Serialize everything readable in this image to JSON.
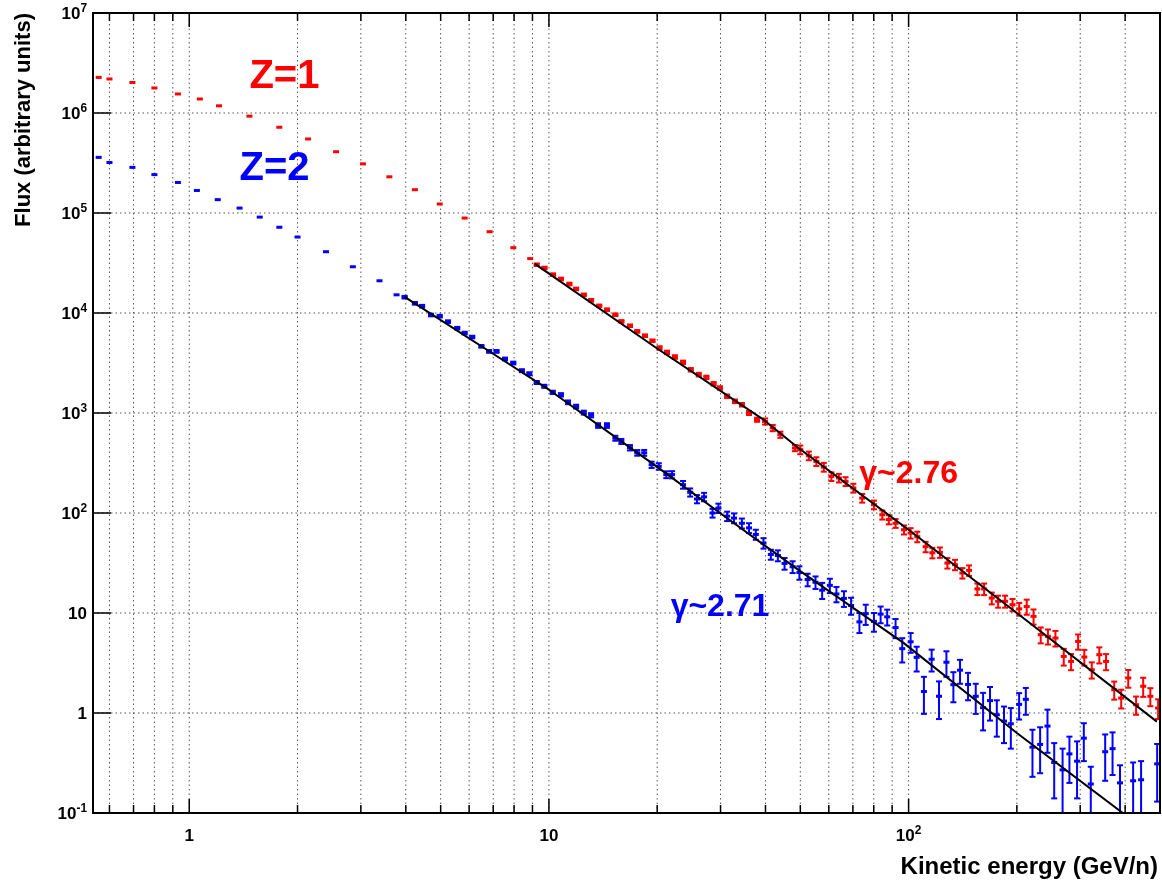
{
  "chart_data": {
    "type": "scatter",
    "xlabel": "Kinetic energy (GeV/n)",
    "ylabel": "Flux (arbitrary units)",
    "log": "xy",
    "grid": true,
    "marker": "square",
    "xlim": [
      0.54,
      500
    ],
    "ylim": [
      0.1,
      10000000
    ],
    "xticks": [
      {
        "value": 0.6,
        "label": null
      },
      {
        "value": 0.7,
        "label": null
      },
      {
        "value": 0.8,
        "label": null
      },
      {
        "value": 0.9,
        "label": null
      },
      1,
      {
        "value": 2,
        "label": null
      },
      {
        "value": 3,
        "label": null
      },
      {
        "value": 4,
        "label": null
      },
      {
        "value": 5,
        "label": null
      },
      {
        "value": 6,
        "label": null
      },
      {
        "value": 7,
        "label": null
      },
      {
        "value": 8,
        "label": null
      },
      {
        "value": 9,
        "label": null
      },
      10,
      {
        "value": 20,
        "label": null
      },
      {
        "value": 30,
        "label": null
      },
      {
        "value": 40,
        "label": null
      },
      {
        "value": 50,
        "label": null
      },
      {
        "value": 60,
        "label": null
      },
      {
        "value": 70,
        "label": null
      },
      {
        "value": 80,
        "label": null
      },
      {
        "value": 90,
        "label": null
      },
      {
        "value": 100,
        "label": "10$^{2}$"
      },
      {
        "value": 200,
        "label": null
      },
      {
        "value": 300,
        "label": null
      },
      {
        "value": 400,
        "label": null
      }
    ],
    "yticks": [
      {
        "value": 0.1,
        "label": "10$^{-1}$"
      },
      1,
      10,
      {
        "value": 100,
        "label": "10$^{2}$"
      },
      {
        "value": 1000,
        "label": "10$^{3}$"
      },
      {
        "value": 10000,
        "label": "10$^{4}$"
      },
      {
        "value": 100000,
        "label": "10$^{5}$"
      },
      {
        "value": 1000000,
        "label": "10$^{6}$"
      },
      {
        "value": 10000000,
        "label": "10$^{7}$"
      }
    ],
    "annotations": [
      "γ~2.76",
      "γ~2.71"
    ],
    "series": [
      {
        "name": "Z=1",
        "color": "#ff0000",
        "x": [
          0.56,
          0.6,
          0.695,
          0.8,
          0.93,
          1.07,
          1.21,
          1.47,
          1.78,
          2.14,
          2.56,
          3.04,
          3.6,
          4.24,
          4.97,
          5.83,
          6.84,
          7.96,
          8.87,
          9.25,
          9.72,
          10.27,
          10.8,
          11.4,
          11.9,
          12.5,
          13.1,
          13.8,
          14.5,
          15.3,
          15.9,
          16.8,
          17.6,
          18.5,
          19.4,
          20.3,
          21.3,
          22.4,
          23.6,
          24.8,
          26.1,
          27.4,
          28.7,
          29.9,
          31.3,
          32.9,
          34.4,
          36.0,
          37.9,
          39.9,
          41.9,
          44.0,
          48.3,
          50.0,
          52.8,
          55.4,
          58.1,
          61.0,
          64.0,
          66.8,
          70.2,
          74.3,
          80.1,
          84.5,
          88.1,
          92.0,
          97.1,
          101.3,
          105.7,
          111.5,
          116.4,
          122.2,
          128.2,
          134.6,
          141.1,
          147.3,
          155.3,
          162.2,
          170.3,
          177.4,
          185.5,
          194.5,
          203,
          213,
          222.5,
          233,
          244,
          256,
          270,
          283,
          296,
          308,
          323,
          339,
          354,
          373,
          390,
          408,
          429,
          449,
          470,
          494
        ],
        "values": [
          2270000,
          2190000,
          2020000,
          1780000,
          1550000,
          1380000,
          1180000,
          930000,
          720000,
          550000,
          410000,
          310000,
          230000,
          171000,
          123000,
          89000,
          65000,
          45000,
          35000,
          30400,
          28200,
          24200,
          21900,
          19500,
          17400,
          15200,
          13400,
          11800,
          10800,
          9620,
          8240,
          7460,
          6550,
          5930,
          5280,
          4470,
          4040,
          3630,
          3210,
          2710,
          2420,
          2270,
          1960,
          1780,
          1470,
          1310,
          1210,
          1000,
          857,
          824,
          708,
          607,
          447,
          430,
          374,
          328,
          288,
          232,
          224,
          207,
          178,
          141,
          121,
          96,
          86,
          79,
          68,
          63,
          58,
          46,
          40,
          40.4,
          31.6,
          30.4,
          25.1,
          26.7,
          17.4,
          17.4,
          14.1,
          13.1,
          13.1,
          12.1,
          11.0,
          11.6,
          9.25,
          6.07,
          5.84,
          5.62,
          3.68,
          3.28,
          5.2,
          3.63,
          2.71,
          3.83,
          3.28,
          1.71,
          1.41,
          2.24,
          1.21,
          1.85,
          1.47,
          1.12
        ],
        "errors": [
          null,
          null,
          null,
          null,
          null,
          null,
          null,
          null,
          null,
          null,
          null,
          null,
          null,
          null,
          null,
          null,
          null,
          null,
          null,
          900,
          850,
          730,
          660,
          590,
          520,
          460,
          400,
          350,
          320,
          290,
          250,
          220,
          200,
          180,
          160,
          180,
          160,
          150,
          130,
          110,
          100,
          90,
          80,
          70,
          60,
          55,
          50,
          45,
          40,
          58,
          50,
          43,
          32,
          43,
          37,
          33,
          29,
          23,
          22,
          21,
          18,
          14,
          12,
          10,
          9,
          8,
          7,
          7.5,
          7,
          5.5,
          4.8,
          4.8,
          3.8,
          3.6,
          3.0,
          3.2,
          2.3,
          2.3,
          1.9,
          1.8,
          1.8,
          1.7,
          1.6,
          2.0,
          1.6,
          1.1,
          1.0,
          1.0,
          0.7,
          0.6,
          0.9,
          0.65,
          0.5,
          0.7,
          0.6,
          0.35,
          0.3,
          0.45,
          0.25,
          0.4,
          0.3,
          0.25
        ]
      },
      {
        "name": "Z=2",
        "color": "#0000ff",
        "x": [
          0.56,
          0.6,
          0.695,
          0.8,
          0.93,
          1.05,
          1.2,
          1.38,
          1.57,
          1.78,
          2.0,
          2.4,
          2.85,
          3.38,
          3.77,
          3.97,
          4.24,
          4.44,
          4.7,
          4.97,
          5.24,
          5.56,
          5.83,
          6.12,
          6.49,
          6.82,
          7.15,
          7.55,
          7.96,
          8.41,
          8.82,
          9.25,
          9.71,
          10.25,
          10.8,
          11.3,
          11.9,
          12.5,
          13.1,
          13.7,
          14.5,
          15.3,
          15.9,
          16.8,
          17.6,
          18.4,
          19.3,
          20.2,
          21.2,
          22.0,
          23.6,
          24.7,
          25.8,
          27.0,
          28.5,
          29.6,
          31.3,
          32.7,
          34.4,
          36.0,
          37.6,
          39.5,
          41.4,
          43.3,
          45.2,
          47.6,
          49.7,
          52.4,
          55.1,
          57.5,
          60.4,
          63.0,
          66.1,
          69.2,
          73.0,
          76.0,
          80.1,
          83.6,
          87.2,
          92.0,
          96.0,
          101.3,
          105.3,
          110.3,
          115.9,
          121.5,
          127.4,
          133.2,
          139.0,
          146.3,
          153.7,
          161.1,
          168.4,
          175.9,
          184.2,
          192.4,
          202.9,
          211.8,
          221.0,
          232.1,
          243.3,
          254,
          268,
          280,
          294,
          307,
          321,
          352,
          369,
          387,
          421,
          443,
          491
        ],
        "values": [
          360000,
          320000,
          286000,
          242000,
          202000,
          168000,
          136000,
          112000,
          91000,
          72000,
          57500,
          41000,
          29000,
          21000,
          15200,
          14400,
          12500,
          11700,
          9550,
          9300,
          8200,
          7050,
          6300,
          5750,
          4640,
          4130,
          4130,
          3470,
          3160,
          2650,
          2470,
          2020,
          1850,
          1610,
          1520,
          1280,
          1160,
          1010,
          950,
          750,
          750,
          560,
          520,
          450,
          400,
          400,
          304,
          293,
          242,
          242,
          192,
          161,
          138,
          145,
          100,
          112,
          93,
          89,
          79,
          71,
          61,
          50,
          38.5,
          37.6,
          31.3,
          29.0,
          25.4,
          21.6,
          20.3,
          16.9,
          18.9,
          15.5,
          14.0,
          11.9,
          8.15,
          9.85,
          8.25,
          9.75,
          9.15,
          7.15,
          4.4,
          5.15,
          3.6,
          1.64,
          3.45,
          1.47,
          3.22,
          1.92,
          2.68,
          1.93,
          1.47,
          1.13,
          1.33,
          0.96,
          0.83,
          0.78,
          1.22,
          1.37,
          0.455,
          0.485,
          0.74,
          0.32,
          0.27,
          0.39,
          0.33,
          0.56,
          0.195,
          0.41,
          0.44,
          0.2,
          0.21,
          0.215,
          0.31
        ],
        "errors": [
          null,
          null,
          null,
          null,
          null,
          null,
          null,
          null,
          null,
          null,
          null,
          null,
          null,
          null,
          null,
          430,
          380,
          350,
          290,
          280,
          250,
          210,
          190,
          170,
          140,
          130,
          130,
          110,
          100,
          90,
          85,
          70,
          65,
          60,
          60,
          55,
          50,
          45,
          45,
          40,
          40,
          32,
          30,
          28,
          26,
          27,
          22,
          22,
          19,
          20,
          17,
          15,
          13,
          14,
          10,
          12,
          10,
          10,
          9,
          8,
          7,
          6,
          4.4,
          4.7,
          4.2,
          3.9,
          3.9,
          3.1,
          2.9,
          3.1,
          3.1,
          2.7,
          2.5,
          2.3,
          1.85,
          2.25,
          1.75,
          1.85,
          1.65,
          1.55,
          1.2,
          1.15,
          1.0,
          0.66,
          0.85,
          0.6,
          0.92,
          0.64,
          0.72,
          0.59,
          0.49,
          0.46,
          0.49,
          0.38,
          0.33,
          0.34,
          0.36,
          0.41,
          0.225,
          0.235,
          0.34,
          0.18,
          0.17,
          0.19,
          0.19,
          0.23,
          0.095,
          0.2,
          0.2,
          0.1,
          0.11,
          0.115,
          0.18
        ]
      },
      {
        "type": "line",
        "marker": "none",
        "color": "#000000",
        "x": [
          9.14,
          19.9,
          39.5,
          49.4,
          100,
          200,
          490
        ],
        "values": [
          31000,
          4470,
          857,
          447,
          68,
          10,
          0.82
        ]
      },
      {
        "type": "line",
        "marker": "none",
        "color": "#000000",
        "x": [
          3.97,
          10,
          19.9,
          29.9,
          49.4,
          97,
          200,
          394
        ],
        "values": [
          14500,
          1710,
          293,
          100,
          27,
          5.0,
          0.63,
          0.1
        ]
      }
    ]
  }
}
